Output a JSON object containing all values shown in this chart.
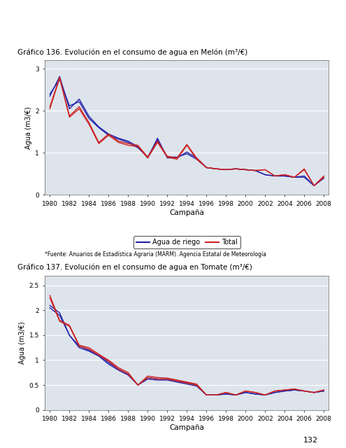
{
  "title1": "Gráfico 136. Evolución en el consumo de agua en Melón (m³/€)",
  "title2": "Gráfico 137. Evolución en el consumo de agua en Tomate (m³/€)",
  "xlabel": "Campaña",
  "ylabel1": "Agua (m3/€)",
  "ylabel2": "Agua (m3/€)",
  "footnote": "*Fuente: Anuarios de Estadística Agraria (MARM). Agencia Estatal de Meteorología",
  "legend_blue": "Agua de riego",
  "legend_red": "Total",
  "page_number": "132",
  "years": [
    1980,
    1981,
    1982,
    1983,
    1984,
    1985,
    1986,
    1987,
    1988,
    1989,
    1990,
    1991,
    1992,
    1993,
    1994,
    1995,
    1996,
    1997,
    1998,
    1999,
    2000,
    2001,
    2002,
    2003,
    2004,
    2005,
    2006,
    2007,
    2008
  ],
  "melon_blue1": [
    2.35,
    2.82,
    2.05,
    2.28,
    1.87,
    1.62,
    1.45,
    1.35,
    1.28,
    1.15,
    0.88,
    1.35,
    0.88,
    0.88,
    1.02,
    0.88,
    0.65,
    0.62,
    0.6,
    0.62,
    0.6,
    0.58,
    0.48,
    0.45,
    0.45,
    0.42,
    0.45,
    0.22,
    0.4
  ],
  "melon_blue2": [
    2.4,
    2.75,
    2.12,
    2.22,
    1.82,
    1.6,
    1.42,
    1.33,
    1.25,
    1.12,
    0.9,
    1.32,
    0.9,
    0.9,
    0.98,
    0.85,
    0.65,
    0.62,
    0.6,
    0.62,
    0.6,
    0.58,
    0.48,
    0.45,
    0.45,
    0.42,
    0.42,
    0.22,
    0.4
  ],
  "melon_red1": [
    2.1,
    2.8,
    1.88,
    2.1,
    1.72,
    1.25,
    1.45,
    1.28,
    1.22,
    1.18,
    0.9,
    1.28,
    0.92,
    0.88,
    1.2,
    0.88,
    0.65,
    0.62,
    0.6,
    0.62,
    0.6,
    0.58,
    0.6,
    0.45,
    0.48,
    0.42,
    0.62,
    0.22,
    0.45
  ],
  "melon_red2": [
    2.05,
    2.78,
    1.85,
    2.05,
    1.68,
    1.22,
    1.42,
    1.25,
    1.18,
    1.15,
    0.88,
    1.25,
    0.9,
    0.85,
    1.18,
    0.85,
    0.65,
    0.62,
    0.6,
    0.62,
    0.6,
    0.58,
    0.6,
    0.45,
    0.48,
    0.42,
    0.6,
    0.22,
    0.42
  ],
  "tomato_blue1": [
    2.1,
    1.95,
    1.5,
    1.28,
    1.2,
    1.1,
    0.95,
    0.82,
    0.72,
    0.5,
    0.65,
    0.62,
    0.62,
    0.58,
    0.55,
    0.5,
    0.3,
    0.3,
    0.32,
    0.3,
    0.35,
    0.32,
    0.3,
    0.35,
    0.38,
    0.4,
    0.38,
    0.35,
    0.38
  ],
  "tomato_blue2": [
    2.05,
    1.9,
    1.5,
    1.25,
    1.18,
    1.08,
    0.92,
    0.8,
    0.7,
    0.5,
    0.62,
    0.6,
    0.6,
    0.56,
    0.52,
    0.48,
    0.3,
    0.3,
    0.32,
    0.3,
    0.35,
    0.32,
    0.3,
    0.35,
    0.38,
    0.4,
    0.38,
    0.35,
    0.38
  ],
  "tomato_red1": [
    2.3,
    1.8,
    1.7,
    1.3,
    1.25,
    1.12,
    1.0,
    0.85,
    0.75,
    0.5,
    0.68,
    0.65,
    0.64,
    0.6,
    0.56,
    0.52,
    0.3,
    0.3,
    0.35,
    0.3,
    0.38,
    0.35,
    0.3,
    0.38,
    0.4,
    0.42,
    0.38,
    0.35,
    0.4
  ],
  "tomato_red2": [
    2.25,
    1.78,
    1.68,
    1.28,
    1.22,
    1.1,
    0.98,
    0.82,
    0.72,
    0.5,
    0.65,
    0.62,
    0.62,
    0.58,
    0.54,
    0.5,
    0.3,
    0.3,
    0.35,
    0.3,
    0.38,
    0.35,
    0.3,
    0.38,
    0.4,
    0.42,
    0.38,
    0.35,
    0.4
  ],
  "bg_color": "#dde4ec",
  "blue_color": "#2222aa",
  "red_color": "#cc2222",
  "xticks": [
    1980,
    1982,
    1984,
    1986,
    1988,
    1990,
    1992,
    1994,
    1996,
    1998,
    2000,
    2002,
    2004,
    2006,
    2008
  ],
  "melon_ylim": [
    0,
    3.2
  ],
  "melon_yticks": [
    0,
    1,
    2,
    3
  ],
  "tomato_ylim": [
    0,
    2.7
  ],
  "tomato_yticks": [
    0,
    0.5,
    1.0,
    1.5,
    2.0,
    2.5
  ]
}
